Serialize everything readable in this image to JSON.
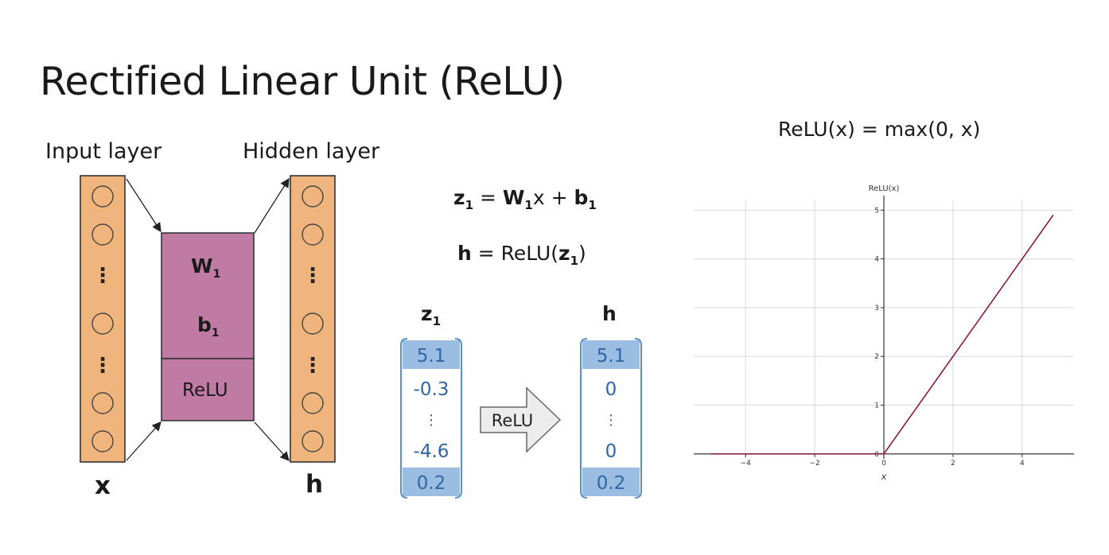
{
  "title": "Rectified Linear Unit (ReLU)",
  "network": {
    "input_label": "Input layer",
    "hidden_label": "Hidden layer",
    "input_var": "x",
    "hidden_var": "h",
    "weights_var": "W",
    "weights_sub": "1",
    "bias_var": "b",
    "bias_sub": "1",
    "activation_label": "ReLU",
    "dots": "⋮"
  },
  "equations": {
    "z_lhs": "z",
    "z_sub": "1",
    "z_eq": " = ",
    "z_W": "W",
    "z_W_sub": "1",
    "z_x": "x + ",
    "z_b": "b",
    "z_b_sub": "1",
    "h_lhs": "h",
    "h_eq": " = ReLU(",
    "h_z": "z",
    "h_z_sub": "1",
    "h_close": ")"
  },
  "vectors": {
    "z_label": "z",
    "z_sub": "1",
    "h_label": "h",
    "z_values": [
      "5.1",
      "-0.3",
      "⋮",
      "-4.6",
      "0.2"
    ],
    "h_values": [
      "5.1",
      "0",
      "⋮",
      "0",
      "0.2"
    ],
    "arrow_label": "ReLU"
  },
  "plot_formula": "ReLU(x) = max(0, x)",
  "chart_data": {
    "type": "line",
    "title": "",
    "xlabel": "x",
    "ylabel": "ReLU(x)",
    "xlim": [
      -5.5,
      5.5
    ],
    "ylim": [
      -0.1,
      5.2
    ],
    "x_ticks": [
      -4,
      -2,
      0,
      2,
      4
    ],
    "y_ticks": [
      0,
      1,
      2,
      3,
      4,
      5
    ],
    "grid": true,
    "series": [
      {
        "x": [
          -5,
          0,
          4.9
        ],
        "y": [
          0,
          0,
          4.9
        ],
        "color": "#8b1a3a"
      }
    ]
  },
  "colors": {
    "layer_fill": "#f0b57d",
    "matrix_fill": "#c07ba5",
    "highlight": "#9cbde2",
    "vector_text": "#2f66a6",
    "relu_line": "#8b1a3a"
  }
}
